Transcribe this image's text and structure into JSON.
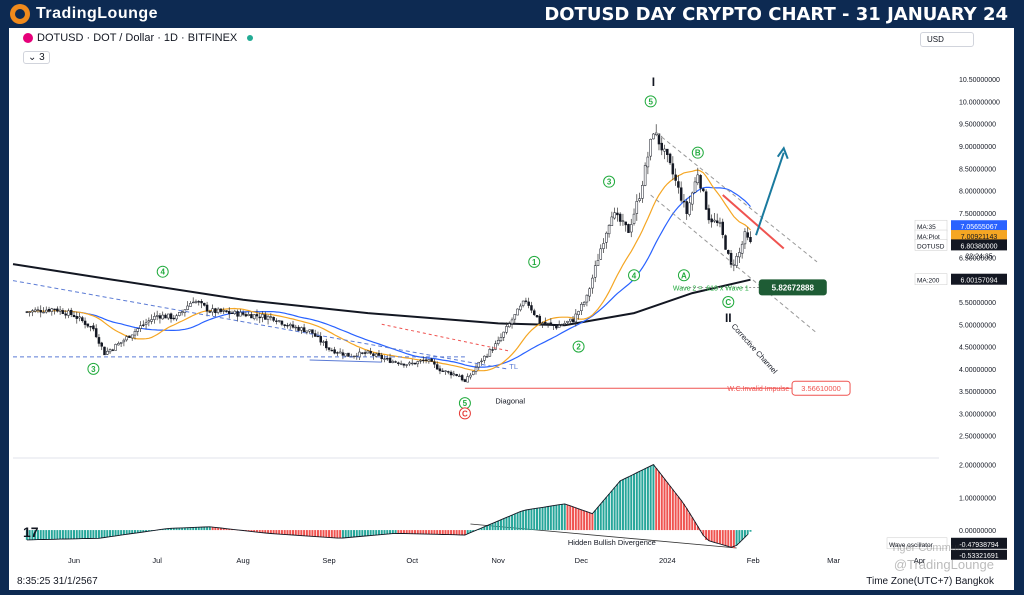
{
  "header": {
    "logo_text": "TradingLounge",
    "title": "DOTUSD DAY CRYPTO CHART - 31 JANUARY 24"
  },
  "symbol_bar": {
    "symbol_line": "DOTUSD · DOT / Dollar · 1D · BITFINEX",
    "indicator_count": "3"
  },
  "currency_label": "USD",
  "footer": {
    "time": "8:35:25 31/1/2567",
    "timezone": "Time Zone(UTC+7) Bangkok",
    "watermark": "@TradingLounge",
    "watermark2": "Tiger Community"
  },
  "tv_logo": "17",
  "colors": {
    "up": "#26a69a",
    "down": "#ef5350",
    "ma_fast": "#f5a623",
    "ma_mid": "#2962ff",
    "ma_200": "#131722",
    "wave_label": "#22ab3e",
    "invalid_line": "#ef5350",
    "arrow": "#1a7a9e",
    "channel": "#999999"
  },
  "chart_data": {
    "type": "candlestick",
    "symbol": "DOTUSD",
    "timeframe": "1D",
    "exchange": "BITFINEX",
    "ylim": [
      2.0,
      10.75
    ],
    "y_ticks": [
      "10.50000000",
      "10.00000000",
      "9.50000000",
      "9.00000000",
      "8.50000000",
      "8.00000000",
      "7.50000000",
      "7.00000000",
      "6.50000000",
      "6.00000000",
      "5.50000000",
      "5.00000000",
      "4.50000000",
      "4.00000000",
      "3.50000000",
      "3.00000000",
      "2.50000000"
    ],
    "y_tick_values": [
      10.5,
      10.0,
      9.5,
      9.0,
      8.5,
      8.0,
      7.5,
      7.0,
      6.5,
      6.0,
      5.5,
      5.0,
      4.5,
      4.0,
      3.5,
      3.0,
      2.5
    ],
    "x_ticks": [
      "Jun",
      "Jul",
      "Aug",
      "Sep",
      "Oct",
      "Nov",
      "Dec",
      "2024",
      "Feb",
      "Mar",
      "Apr"
    ],
    "price_path": [
      [
        "2023-05-15",
        5.28
      ],
      [
        "2023-05-25",
        5.35
      ],
      [
        "2023-06-01",
        5.2
      ],
      [
        "2023-06-08",
        4.9
      ],
      [
        "2023-06-12",
        4.35
      ],
      [
        "2023-06-18",
        4.6
      ],
      [
        "2023-06-25",
        4.95
      ],
      [
        "2023-07-01",
        5.2
      ],
      [
        "2023-07-08",
        5.15
      ],
      [
        "2023-07-14",
        5.55
      ],
      [
        "2023-07-20",
        5.3
      ],
      [
        "2023-07-28",
        5.25
      ],
      [
        "2023-08-05",
        5.2
      ],
      [
        "2023-08-12",
        5.15
      ],
      [
        "2023-08-18",
        4.95
      ],
      [
        "2023-08-25",
        4.85
      ],
      [
        "2023-09-01",
        4.45
      ],
      [
        "2023-09-08",
        4.3
      ],
      [
        "2023-09-15",
        4.35
      ],
      [
        "2023-09-22",
        4.2
      ],
      [
        "2023-09-30",
        4.1
      ],
      [
        "2023-10-06",
        4.2
      ],
      [
        "2023-10-12",
        3.95
      ],
      [
        "2023-10-18",
        3.85
      ],
      [
        "2023-10-20",
        3.7
      ],
      [
        "2023-10-26",
        4.2
      ],
      [
        "2023-11-01",
        4.6
      ],
      [
        "2023-11-06",
        5.1
      ],
      [
        "2023-11-11",
        5.55
      ],
      [
        "2023-11-16",
        5.05
      ],
      [
        "2023-11-22",
        4.95
      ],
      [
        "2023-11-28",
        5.1
      ],
      [
        "2023-12-03",
        5.6
      ],
      [
        "2023-12-08",
        6.7
      ],
      [
        "2023-12-12",
        7.5
      ],
      [
        "2023-12-18",
        7.1
      ],
      [
        "2023-12-22",
        7.9
      ],
      [
        "2023-12-27",
        9.35
      ],
      [
        "2024-01-01",
        8.7
      ],
      [
        "2024-01-04",
        8.2
      ],
      [
        "2024-01-08",
        7.5
      ],
      [
        "2024-01-12",
        8.4
      ],
      [
        "2024-01-16",
        7.4
      ],
      [
        "2024-01-20",
        7.2
      ],
      [
        "2024-01-24",
        6.3
      ],
      [
        "2024-01-27",
        6.6
      ],
      [
        "2024-01-29",
        7.0
      ],
      [
        "2024-01-31",
        6.8
      ]
    ],
    "moving_averages": [
      {
        "name": "MA:35",
        "value": 7.05655067
      },
      {
        "name": "MA:Plot",
        "value": 7.00921143
      },
      {
        "name": "MA:200",
        "value": 6.00157094
      }
    ],
    "last_price": {
      "label": "DOTUSD",
      "value": 6.8038,
      "countdown": "22:24:35"
    },
    "wave_labels": [
      {
        "label": "4",
        "date": "2023-07-03",
        "price": 6.18
      },
      {
        "label": "3",
        "date": "2023-06-08",
        "price": 4.0
      },
      {
        "label": "5",
        "date": "2023-10-20",
        "price": 3.23
      },
      {
        "label": "C",
        "date": "2023-10-20",
        "price": 3.0
      },
      {
        "label": "1",
        "date": "2023-11-14",
        "price": 6.4
      },
      {
        "label": "2",
        "date": "2023-11-30",
        "price": 4.5
      },
      {
        "label": "3",
        "date": "2023-12-11",
        "price": 8.2
      },
      {
        "label": "4",
        "date": "2023-12-20",
        "price": 6.1
      },
      {
        "label": "5",
        "date": "2023-12-26",
        "price": 10.0
      },
      {
        "label": "B",
        "date": "2024-01-12",
        "price": 8.85
      },
      {
        "label": "A",
        "date": "2024-01-07",
        "price": 6.1
      },
      {
        "label": "C",
        "date": "2024-01-23",
        "price": 5.5
      }
    ],
    "annotations": [
      {
        "text": "Diagonal"
      },
      {
        "text": "W.C.Invalid Impulse",
        "value": "3.56610000"
      },
      {
        "text": "Wave 2 = .618 x Wave 1",
        "value": "5.82672888"
      },
      {
        "text": "Corrective Channel"
      },
      {
        "text": "TL"
      },
      {
        "text": "Hidden Bullish Divergence"
      },
      {
        "text": "I"
      },
      {
        "text": "II"
      }
    ],
    "oscillator": {
      "name": "Wave oscillator",
      "value": -0.47938794,
      "value_text": "-0.47938794",
      "second_value_text": "-0.53321691",
      "ylim": [
        -0.7,
        2.2
      ],
      "y_ticks": [
        "2.00000000",
        "1.00000000",
        "0.00000000"
      ],
      "y_tick_values": [
        2.0,
        1.0,
        0.0
      ]
    }
  }
}
